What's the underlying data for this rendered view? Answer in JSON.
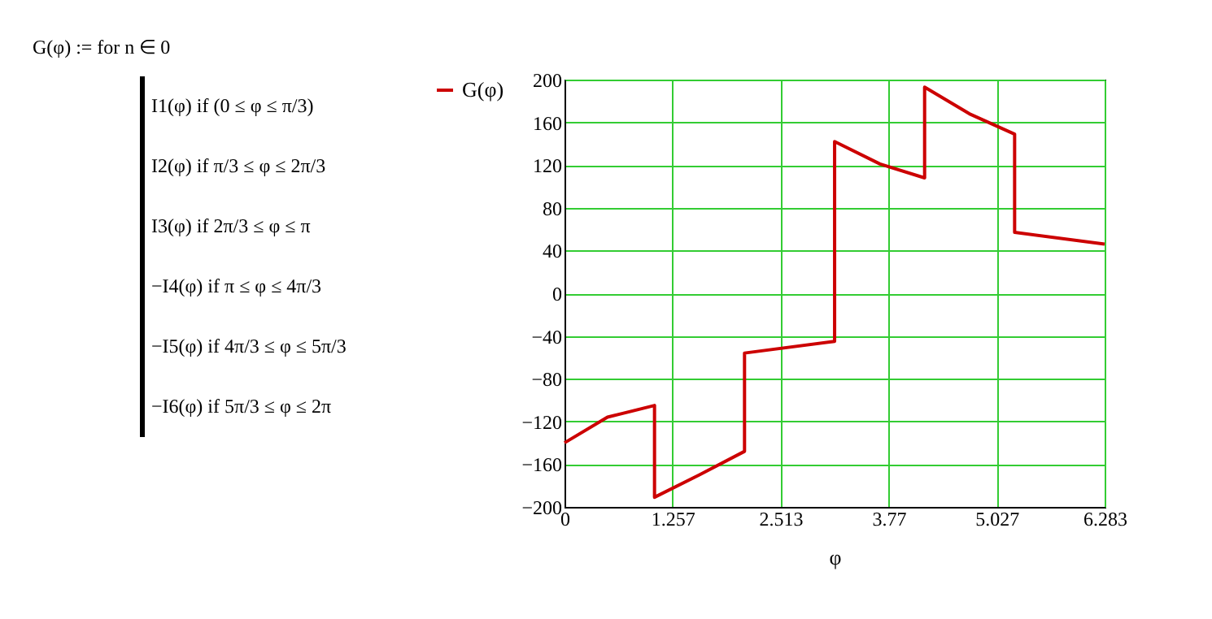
{
  "chart_data": {
    "type": "line",
    "xlabel": "φ",
    "legend": "left",
    "grid": true,
    "annotations": [
      "G(φ) := for n ∈ 0",
      "I1(φ) if (0 ≤ φ ≤ π/3)",
      "I2(φ) if π/3 ≤ φ ≤ 2π/3",
      "I3(φ) if 2π/3 ≤ φ ≤ π",
      "−I4(φ) if π ≤ φ ≤ 4π/3",
      "−I5(φ) if 4π/3 ≤ φ ≤ 5π/3",
      "−I6(φ) if 5π/3 ≤ φ ≤ 2π"
    ],
    "xlim": [
      0,
      6.283
    ],
    "xticks": [
      0,
      1.257,
      2.513,
      3.77,
      5.027,
      6.283
    ],
    "ylim": [
      -200,
      200
    ],
    "yticks": [
      -200,
      -160,
      -120,
      -80,
      -40,
      0,
      40,
      80,
      120,
      160,
      200
    ],
    "series": [
      {
        "name": "G(φ)",
        "color": "#cc0000",
        "x": [
          0,
          0.5,
          1.047,
          1.047,
          1.57,
          2.094,
          2.094,
          3.142,
          3.142,
          3.67,
          4.189,
          4.189,
          4.71,
          5.236,
          5.236,
          6.283
        ],
        "values": [
          -140,
          -116,
          -105,
          -191,
          -170,
          -148,
          -56,
          -45,
          142,
          121,
          108,
          193,
          168,
          149,
          57,
          46
        ]
      }
    ]
  }
}
